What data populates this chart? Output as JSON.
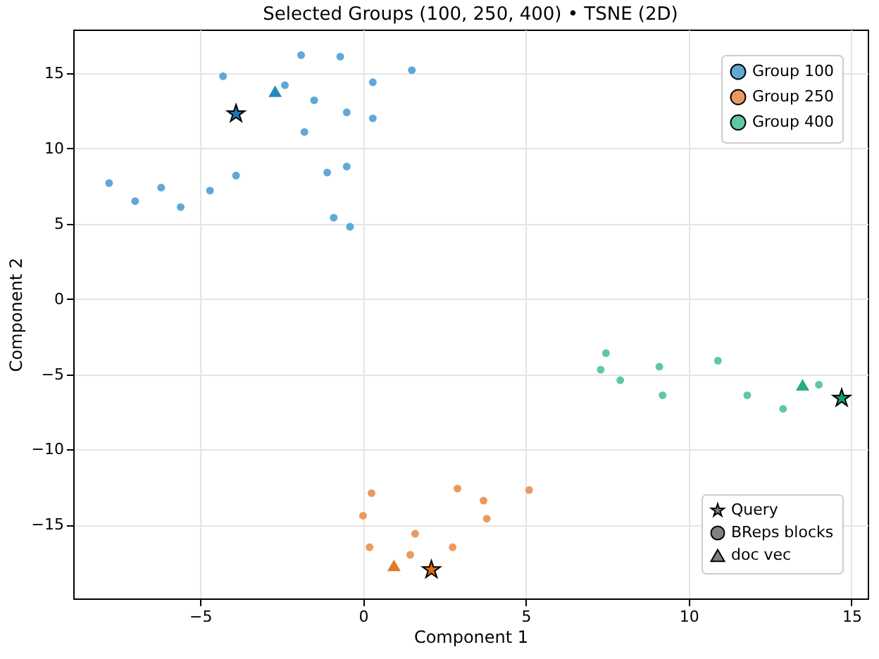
{
  "chart_data": {
    "type": "scatter",
    "title": "Selected Groups (100, 250, 400) • TSNE (2D)",
    "xlabel": "Component 1",
    "ylabel": "Component 2",
    "xlim": [
      -8.9,
      15.5
    ],
    "ylim": [
      -19.9,
      17.9
    ],
    "xticks": [
      -5,
      0,
      5,
      10,
      15
    ],
    "yticks": [
      -15,
      -10,
      -5,
      0,
      5,
      10,
      15
    ],
    "grid": true,
    "legend": "top right",
    "annotations": [
      "Query",
      "BReps blocks",
      "doc vec"
    ],
    "series": [
      {
        "marker": "star",
        "color": "#1f78b4",
        "x": [
          -3.9
        ],
        "values": [
          12.3
        ]
      },
      {
        "marker": "star",
        "color": "#e06c10",
        "x": [
          2.1
        ],
        "values": [
          -18.0
        ]
      },
      {
        "marker": "star",
        "color": "#11a07a",
        "x": [
          14.7
        ],
        "values": [
          -6.6
        ]
      },
      {
        "name": "Group 100",
        "marker": "circle",
        "color": "#5ea9d6",
        "x": [
          -7.8,
          -7.0,
          -6.2,
          -5.6,
          -4.7,
          -3.9,
          -4.3,
          -2.4,
          -1.9,
          -1.5,
          -1.8,
          -0.7,
          -0.5,
          0.3,
          0.3,
          1.5,
          -1.1,
          -0.5,
          -0.9,
          -0.4
        ],
        "values": [
          7.7,
          6.5,
          7.4,
          6.1,
          7.2,
          8.2,
          14.8,
          14.2,
          16.2,
          13.2,
          11.1,
          16.1,
          12.4,
          14.4,
          12.0,
          15.2,
          8.4,
          8.8,
          5.4,
          4.8
        ]
      },
      {
        "name": "Group 250",
        "marker": "circle",
        "color": "#ea9a60",
        "x": [
          0.26,
          0.0,
          0.2,
          1.6,
          1.45,
          2.9,
          3.7,
          3.8,
          2.75,
          5.1
        ],
        "values": [
          -12.9,
          -14.4,
          -16.5,
          -15.6,
          -17.0,
          -12.6,
          -13.4,
          -14.6,
          -16.5,
          -12.7
        ]
      },
      {
        "name": "Group 400",
        "marker": "circle",
        "color": "#5ec8a6",
        "x": [
          7.46,
          7.3,
          7.9,
          9.1,
          9.2,
          10.9,
          11.8,
          12.9,
          14.0
        ],
        "values": [
          -3.6,
          -4.7,
          -5.4,
          -4.5,
          -6.4,
          -4.1,
          -6.4,
          -7.3,
          -5.7
        ]
      },
      {
        "marker": "triangle",
        "color": "#2a87c0",
        "x": [
          -2.7
        ],
        "values": [
          13.8
        ]
      },
      {
        "marker": "triangle",
        "color": "#e07b2a",
        "x": [
          0.95
        ],
        "values": [
          -17.7
        ]
      },
      {
        "marker": "triangle",
        "color": "#2aa888",
        "x": [
          13.5
        ],
        "values": [
          -5.7
        ]
      }
    ]
  }
}
